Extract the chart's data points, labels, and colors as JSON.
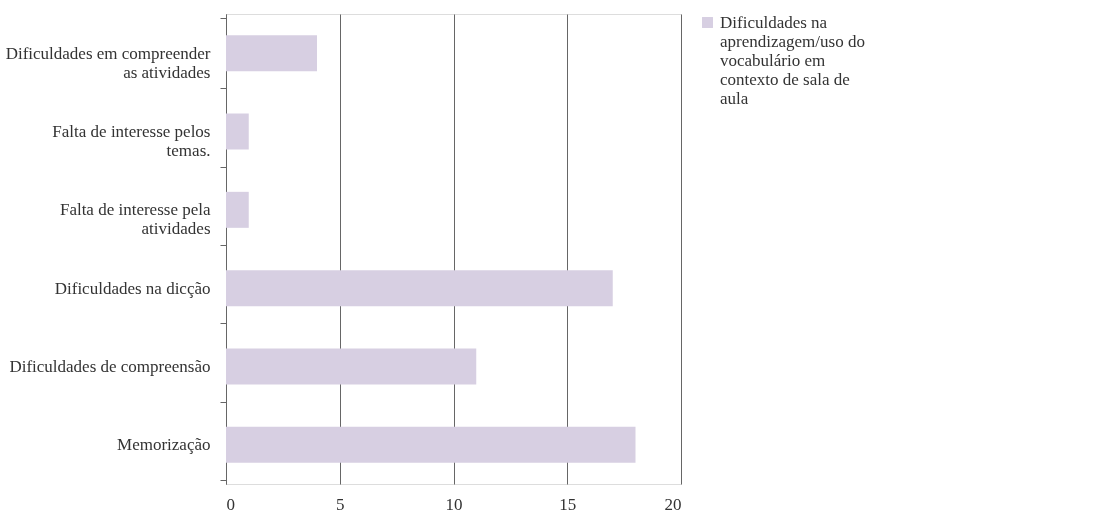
{
  "chart_data": {
    "type": "bar",
    "orientation": "horizontal",
    "categories": [
      "Dificuldades em compreender as atividades",
      "Falta de interesse pelos temas.",
      "Falta de interesse pela atividades",
      "Dificuldades na dicção",
      "Dificuldades de compreensão",
      "Memorização"
    ],
    "series": [
      {
        "name": "Dificuldades na aprendizagem/uso do vocabulário em contexto de sala de aula",
        "color": "#d7cfe2",
        "values": [
          4,
          1,
          1,
          17,
          11,
          18
        ]
      }
    ],
    "xlim": [
      0,
      20
    ],
    "xticks": [
      0,
      5,
      10,
      15,
      20
    ],
    "grid": "x",
    "legend": "right"
  }
}
